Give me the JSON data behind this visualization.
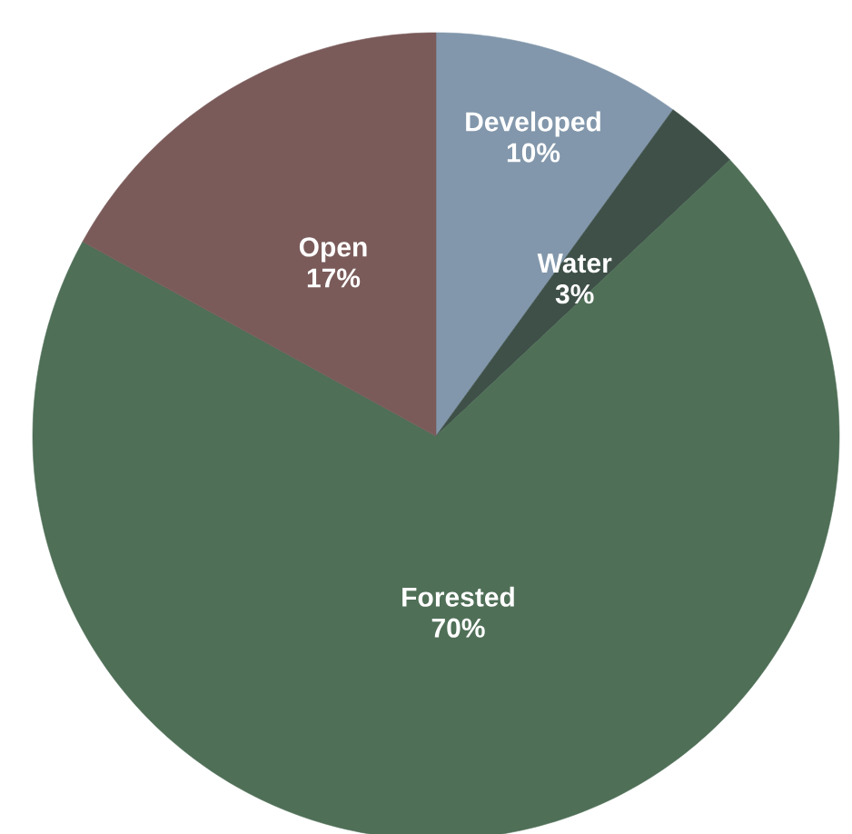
{
  "chart_data": {
    "type": "pie",
    "categories": [
      "Developed",
      "Water",
      "Forested",
      "Open"
    ],
    "values": [
      10,
      3,
      70,
      17
    ],
    "value_labels": [
      "10%",
      "3%",
      "70%",
      "17%"
    ],
    "colors": [
      "#8297ab",
      "#3e5048",
      "#4f6f57",
      "#7a5b5a"
    ]
  }
}
